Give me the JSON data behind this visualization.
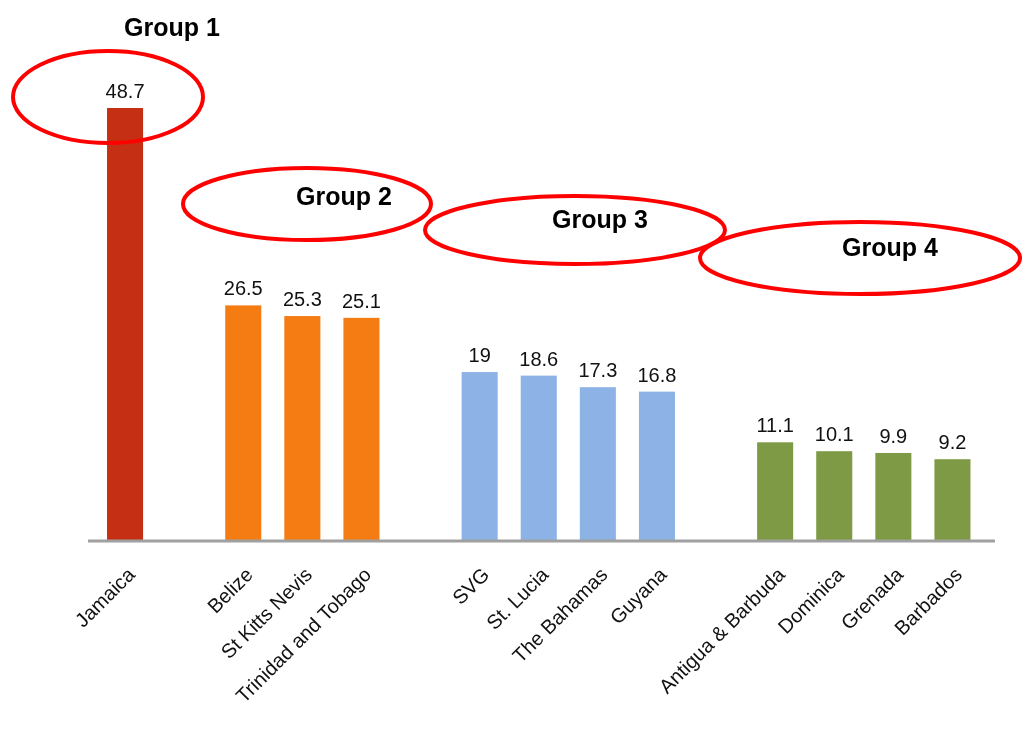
{
  "chart_data": {
    "type": "bar",
    "categories": [
      "Jamaica",
      null,
      "Belize",
      "St Kitts Nevis",
      "Trinidad and Tobago",
      null,
      "SVG",
      "St. Lucia",
      "The Bahamas",
      "Guyana",
      null,
      "Antigua & Barbuda",
      "Dominica",
      "Grenada",
      "Barbados"
    ],
    "values": [
      48.7,
      null,
      26.5,
      25.3,
      25.1,
      null,
      19,
      18.6,
      17.3,
      16.8,
      null,
      11.1,
      10.1,
      9.9,
      9.2
    ],
    "colors": [
      "#c53015",
      null,
      "#f57c13",
      "#f57c13",
      "#f57c13",
      null,
      "#8db3e6",
      "#8db3e6",
      "#8db3e6",
      "#8db3e6",
      null,
      "#7f9a45",
      "#7f9a45",
      "#7f9a45",
      "#7f9a45"
    ],
    "data_labels": true,
    "annotations": [
      "Group 1",
      "Group 2",
      "Group 3",
      "Group 4"
    ]
  }
}
